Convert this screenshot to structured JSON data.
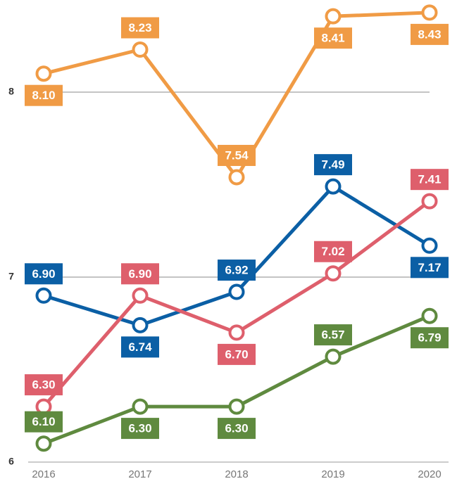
{
  "chart_data": {
    "type": "line",
    "x": [
      "2016",
      "2017",
      "2018",
      "2019",
      "2020"
    ],
    "ylim": [
      6,
      8.5
    ],
    "yticks": [
      6,
      7,
      8
    ],
    "grid": true,
    "series": [
      {
        "color": "#f09b45",
        "values": [
          8.1,
          8.23,
          7.54,
          8.41,
          8.43
        ],
        "value_labels": [
          "8.10",
          "8.23",
          "7.54",
          "8.41",
          "8.43"
        ]
      },
      {
        "color": "#0b5fa5",
        "values": [
          6.9,
          6.74,
          6.92,
          7.49,
          7.17
        ],
        "value_labels": [
          "6.90",
          "6.74",
          "6.92",
          "7.49",
          "7.17"
        ]
      },
      {
        "color": "#de5f6c",
        "values": [
          6.3,
          6.9,
          6.7,
          7.02,
          7.41
        ],
        "value_labels": [
          "6.30",
          "6.90",
          "6.70",
          "7.02",
          "7.41"
        ]
      },
      {
        "color": "#5f8a3f",
        "values": [
          6.1,
          6.3,
          6.3,
          6.57,
          6.79
        ],
        "value_labels": [
          "6.10",
          "6.30",
          "6.30",
          "6.57",
          "6.79"
        ]
      }
    ]
  }
}
